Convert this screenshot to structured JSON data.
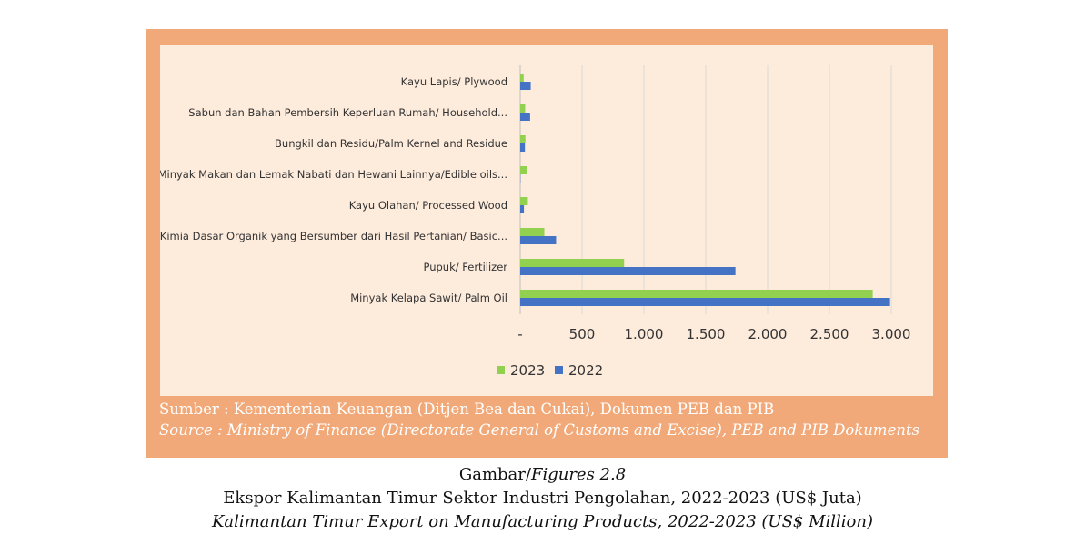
{
  "colors": {
    "frame": "#f2a979",
    "panel": "#fdebdc",
    "series_2023": "#92d050",
    "series_2022": "#4472c4",
    "grid": "#d9d9d9"
  },
  "chart_data": {
    "type": "bar",
    "orientation": "horizontal",
    "categories": [
      "Kayu Lapis/ Plywood",
      "Sabun dan Bahan Pembersih Keperluan Rumah/ Household...",
      "Bungkil dan Residu/Palm Kernel and Residue",
      "Minyak Makan dan Lemak Nabati dan Hewani Lainnya/Edible oils...",
      "Kayu Olahan/ Processed Wood",
      "Kimia Dasar Organik yang Bersumber dari Hasil Pertanian/ Basic...",
      "Pupuk/ Fertilizer",
      "Minyak Kelapa Sawit/ Palm Oil"
    ],
    "series": [
      {
        "name": "2023",
        "color": "#92d050",
        "values": [
          28,
          40,
          42,
          55,
          62,
          195,
          840,
          2850
        ]
      },
      {
        "name": "2022",
        "color": "#4472c4",
        "values": [
          85,
          80,
          38,
          2,
          30,
          290,
          1740,
          2990
        ]
      }
    ],
    "xlim": [
      0,
      3000
    ],
    "x_ticks": [
      0,
      500,
      1000,
      1500,
      2000,
      2500,
      3000
    ],
    "x_tick_labels": [
      "-",
      "500",
      "1.000",
      "1.500",
      "2.000",
      "2.500",
      "3.000"
    ],
    "grid": true,
    "legend_position": "bottom"
  },
  "legend": [
    {
      "label": "2023",
      "color": "#92d050"
    },
    {
      "label": "2022",
      "color": "#4472c4"
    }
  ],
  "source": {
    "line1": "Sumber  : Kementerian Keuangan (Ditjen Bea dan Cukai), Dokumen PEB dan PIB",
    "line2": "Source    : Ministry of Finance (Directorate General of Customs and Excise), PEB and PIB Dokuments"
  },
  "caption": {
    "prefix": "Gambar/",
    "figure": "Figures 2.8",
    "title_id": "Ekspor Kalimantan Timur Sektor Industri Pengolahan, 2022-2023 (US$ Juta)",
    "title_en": "Kalimantan Timur Export on Manufacturing Products, 2022-2023 (US$ Million)"
  }
}
